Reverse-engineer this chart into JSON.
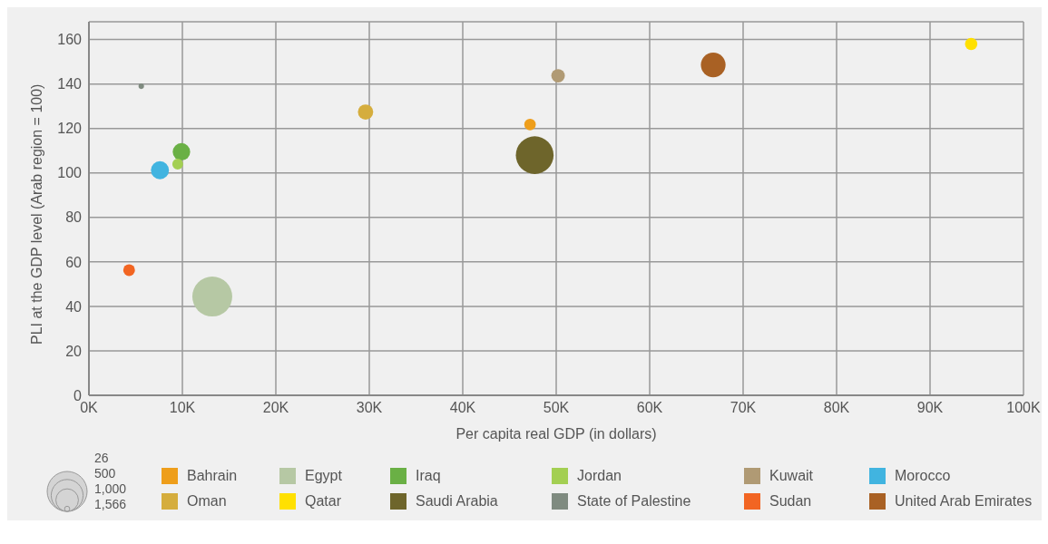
{
  "chart_data": {
    "type": "bubble",
    "xlabel": "Per capita real GDP (in dollars)",
    "ylabel": "PLI at the GDP level (Arab region = 100)",
    "xlim": [
      0,
      100000
    ],
    "xticks": [
      {
        "value": 0,
        "label": "0K"
      },
      {
        "value": 10000,
        "label": "10K"
      },
      {
        "value": 20000,
        "label": "20K"
      },
      {
        "value": 30000,
        "label": "30K"
      },
      {
        "value": 40000,
        "label": "40K"
      },
      {
        "value": 50000,
        "label": "50K"
      },
      {
        "value": 60000,
        "label": "60K"
      },
      {
        "value": 70000,
        "label": "70K"
      },
      {
        "value": 80000,
        "label": "80K"
      },
      {
        "value": 90000,
        "label": "90K"
      },
      {
        "value": 100000,
        "label": "100K"
      }
    ],
    "ylim": [
      0,
      168
    ],
    "yticks": [
      0,
      20,
      40,
      60,
      80,
      100,
      120,
      140,
      160
    ],
    "grid": true,
    "legend": "bottom",
    "marker": "circle",
    "size_legend": [
      26,
      500,
      {
        "value": 1000,
        "label": "1,000"
      },
      {
        "value": 1566,
        "label": "1,566"
      }
    ],
    "series": [
      {
        "name": "Bahrain",
        "color": "#ee9e1b",
        "x": [
          47200
        ],
        "values": [
          121.8
        ],
        "sizes": [
          130
        ]
      },
      {
        "name": "Egypt",
        "color": "#b6c8a4",
        "x": [
          13200
        ],
        "values": [
          44.4
        ],
        "sizes": [
          1566
        ]
      },
      {
        "name": "Iraq",
        "color": "#6ab045",
        "x": [
          9900
        ],
        "values": [
          109.5
        ],
        "sizes": [
          300
        ]
      },
      {
        "name": "Jordan",
        "color": "#a3cf52",
        "x": [
          9500
        ],
        "values": [
          104
        ],
        "sizes": [
          115
        ]
      },
      {
        "name": "Kuwait",
        "color": "#b09a74",
        "x": [
          50200
        ],
        "values": [
          143.7
        ],
        "sizes": [
          180
        ]
      },
      {
        "name": "Morocco",
        "color": "#41b4e0",
        "x": [
          7600
        ],
        "values": [
          101.2
        ],
        "sizes": [
          320
        ]
      },
      {
        "name": "Oman",
        "color": "#d5ad3d",
        "x": [
          29600
        ],
        "values": [
          127.4
        ],
        "sizes": [
          230
        ]
      },
      {
        "name": "Qatar",
        "color": "#ffe000",
        "x": [
          94400
        ],
        "values": [
          158
        ],
        "sizes": [
          150
        ]
      },
      {
        "name": "Saudi Arabia",
        "color": "#6e652b",
        "x": [
          47700
        ],
        "values": [
          108
        ],
        "sizes": [
          1400
        ]
      },
      {
        "name": "State of Palestine",
        "color": "#7f8b80",
        "x": [
          5600
        ],
        "values": [
          139
        ],
        "sizes": [
          30
        ]
      },
      {
        "name": "Sudan",
        "color": "#f26522",
        "x": [
          4300
        ],
        "values": [
          56.3
        ],
        "sizes": [
          135
        ]
      },
      {
        "name": "United Arab Emirates",
        "color": "#a96124",
        "x": [
          66800
        ],
        "values": [
          148.6
        ],
        "sizes": [
          600
        ]
      }
    ]
  }
}
